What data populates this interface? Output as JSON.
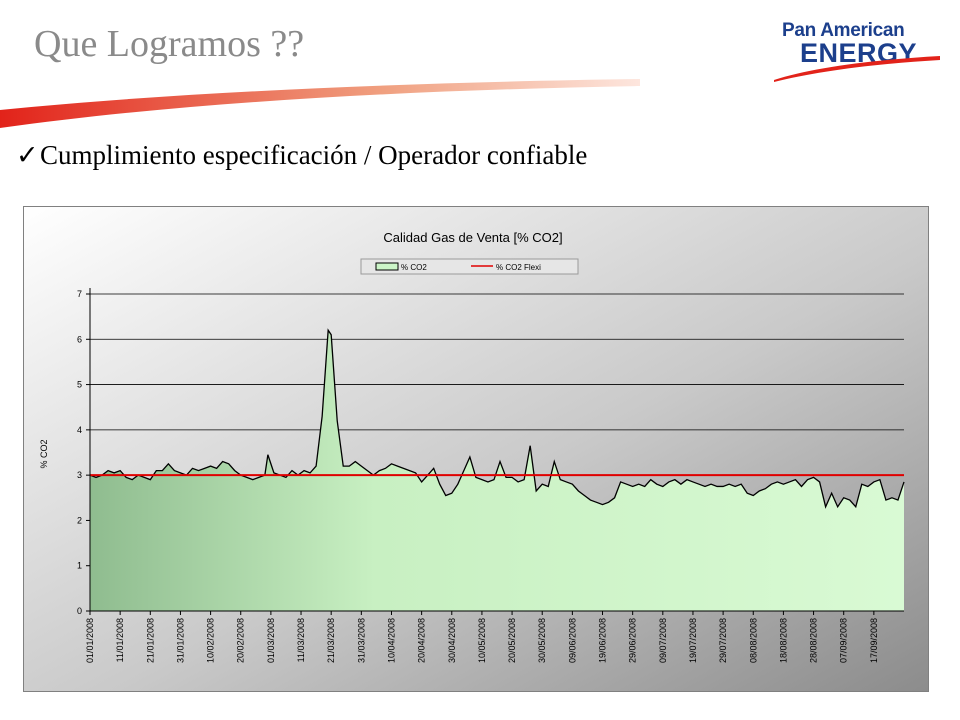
{
  "slide": {
    "title": "Que Logramos ??",
    "bullet_mark": "✓",
    "bullet_text": "Cumplimiento especificación / Operador confiable"
  },
  "logo": {
    "line1": "Pan American",
    "line2": "ENERGY",
    "color": "#1c3f8c",
    "accent_color": "#e2231a"
  },
  "chart_data": {
    "type": "area",
    "title": "Calidad Gas de Venta [%  CO2]",
    "xlabel": "",
    "ylabel": "% CO2",
    "ylim": [
      0,
      7
    ],
    "yticks": [
      0,
      1,
      2,
      3,
      4,
      5,
      6,
      7
    ],
    "grid": true,
    "legend": "top-center",
    "x_tick_labels": [
      "01/01/2008",
      "11/01/2008",
      "21/01/2008",
      "31/01/2008",
      "10/02/2008",
      "20/02/2008",
      "01/03/2008",
      "11/03/2008",
      "21/03/2008",
      "31/03/2008",
      "10/04/2008",
      "20/04/2008",
      "30/04/2008",
      "10/05/2008",
      "20/05/2008",
      "30/05/2008",
      "09/06/2008",
      "19/06/2008",
      "29/06/2008",
      "09/07/2008",
      "19/07/2008",
      "29/07/2008",
      "08/08/2008",
      "18/08/2008",
      "28/08/2008",
      "07/09/2008",
      "17/09/2008"
    ],
    "x_start": "2008-01-01",
    "x_end": "2008-09-27",
    "series": [
      {
        "name": "% CO2",
        "kind": "area",
        "fill": "#ccf5c8",
        "line_color": "#000000",
        "points": [
          [
            "2008-01-01",
            3.0
          ],
          [
            "2008-01-03",
            2.95
          ],
          [
            "2008-01-05",
            3.0
          ],
          [
            "2008-01-07",
            3.1
          ],
          [
            "2008-01-09",
            3.05
          ],
          [
            "2008-01-11",
            3.1
          ],
          [
            "2008-01-13",
            2.95
          ],
          [
            "2008-01-15",
            2.9
          ],
          [
            "2008-01-17",
            3.0
          ],
          [
            "2008-01-19",
            2.95
          ],
          [
            "2008-01-21",
            2.9
          ],
          [
            "2008-01-23",
            3.1
          ],
          [
            "2008-01-25",
            3.1
          ],
          [
            "2008-01-27",
            3.25
          ],
          [
            "2008-01-29",
            3.1
          ],
          [
            "2008-01-31",
            3.05
          ],
          [
            "2008-02-02",
            3.0
          ],
          [
            "2008-02-04",
            3.15
          ],
          [
            "2008-02-06",
            3.1
          ],
          [
            "2008-02-08",
            3.15
          ],
          [
            "2008-02-10",
            3.2
          ],
          [
            "2008-02-12",
            3.15
          ],
          [
            "2008-02-14",
            3.3
          ],
          [
            "2008-02-16",
            3.25
          ],
          [
            "2008-02-18",
            3.1
          ],
          [
            "2008-02-20",
            3.0
          ],
          [
            "2008-02-22",
            2.95
          ],
          [
            "2008-02-24",
            2.9
          ],
          [
            "2008-02-26",
            2.95
          ],
          [
            "2008-02-28",
            3.0
          ],
          [
            "2008-02-29",
            3.45
          ],
          [
            "2008-03-02",
            3.05
          ],
          [
            "2008-03-04",
            3.0
          ],
          [
            "2008-03-06",
            2.95
          ],
          [
            "2008-03-08",
            3.1
          ],
          [
            "2008-03-10",
            3.0
          ],
          [
            "2008-03-12",
            3.1
          ],
          [
            "2008-03-14",
            3.05
          ],
          [
            "2008-03-16",
            3.2
          ],
          [
            "2008-03-18",
            4.3
          ],
          [
            "2008-03-20",
            6.2
          ],
          [
            "2008-03-21",
            6.1
          ],
          [
            "2008-03-23",
            4.2
          ],
          [
            "2008-03-25",
            3.2
          ],
          [
            "2008-03-27",
            3.2
          ],
          [
            "2008-03-29",
            3.3
          ],
          [
            "2008-03-31",
            3.2
          ],
          [
            "2008-04-02",
            3.1
          ],
          [
            "2008-04-04",
            3.0
          ],
          [
            "2008-04-06",
            3.1
          ],
          [
            "2008-04-08",
            3.15
          ],
          [
            "2008-04-10",
            3.25
          ],
          [
            "2008-04-12",
            3.2
          ],
          [
            "2008-04-14",
            3.15
          ],
          [
            "2008-04-16",
            3.1
          ],
          [
            "2008-04-18",
            3.05
          ],
          [
            "2008-04-20",
            2.85
          ],
          [
            "2008-04-22",
            3.0
          ],
          [
            "2008-04-24",
            3.15
          ],
          [
            "2008-04-26",
            2.8
          ],
          [
            "2008-04-28",
            2.55
          ],
          [
            "2008-04-30",
            2.6
          ],
          [
            "2008-05-02",
            2.8
          ],
          [
            "2008-05-04",
            3.1
          ],
          [
            "2008-05-06",
            3.4
          ],
          [
            "2008-05-08",
            2.95
          ],
          [
            "2008-05-10",
            2.9
          ],
          [
            "2008-05-12",
            2.85
          ],
          [
            "2008-05-14",
            2.9
          ],
          [
            "2008-05-16",
            3.3
          ],
          [
            "2008-05-18",
            2.95
          ],
          [
            "2008-05-20",
            2.95
          ],
          [
            "2008-05-22",
            2.85
          ],
          [
            "2008-05-24",
            2.9
          ],
          [
            "2008-05-26",
            3.65
          ],
          [
            "2008-05-28",
            2.65
          ],
          [
            "2008-05-30",
            2.8
          ],
          [
            "2008-06-01",
            2.75
          ],
          [
            "2008-06-03",
            3.3
          ],
          [
            "2008-06-05",
            2.9
          ],
          [
            "2008-06-07",
            2.85
          ],
          [
            "2008-06-09",
            2.8
          ],
          [
            "2008-06-11",
            2.65
          ],
          [
            "2008-06-13",
            2.55
          ],
          [
            "2008-06-15",
            2.45
          ],
          [
            "2008-06-17",
            2.4
          ],
          [
            "2008-06-19",
            2.35
          ],
          [
            "2008-06-21",
            2.4
          ],
          [
            "2008-06-23",
            2.5
          ],
          [
            "2008-06-25",
            2.85
          ],
          [
            "2008-06-27",
            2.8
          ],
          [
            "2008-06-29",
            2.75
          ],
          [
            "2008-07-01",
            2.8
          ],
          [
            "2008-07-03",
            2.75
          ],
          [
            "2008-07-05",
            2.9
          ],
          [
            "2008-07-07",
            2.8
          ],
          [
            "2008-07-09",
            2.75
          ],
          [
            "2008-07-11",
            2.85
          ],
          [
            "2008-07-13",
            2.9
          ],
          [
            "2008-07-15",
            2.8
          ],
          [
            "2008-07-17",
            2.9
          ],
          [
            "2008-07-19",
            2.85
          ],
          [
            "2008-07-21",
            2.8
          ],
          [
            "2008-07-23",
            2.75
          ],
          [
            "2008-07-25",
            2.8
          ],
          [
            "2008-07-27",
            2.75
          ],
          [
            "2008-07-29",
            2.75
          ],
          [
            "2008-07-31",
            2.8
          ],
          [
            "2008-08-02",
            2.75
          ],
          [
            "2008-08-04",
            2.8
          ],
          [
            "2008-08-06",
            2.6
          ],
          [
            "2008-08-08",
            2.55
          ],
          [
            "2008-08-10",
            2.65
          ],
          [
            "2008-08-12",
            2.7
          ],
          [
            "2008-08-14",
            2.8
          ],
          [
            "2008-08-16",
            2.85
          ],
          [
            "2008-08-18",
            2.8
          ],
          [
            "2008-08-20",
            2.85
          ],
          [
            "2008-08-22",
            2.9
          ],
          [
            "2008-08-24",
            2.75
          ],
          [
            "2008-08-26",
            2.9
          ],
          [
            "2008-08-28",
            2.95
          ],
          [
            "2008-08-30",
            2.85
          ],
          [
            "2008-09-01",
            2.3
          ],
          [
            "2008-09-03",
            2.6
          ],
          [
            "2008-09-05",
            2.3
          ],
          [
            "2008-09-07",
            2.5
          ],
          [
            "2008-09-09",
            2.45
          ],
          [
            "2008-09-11",
            2.3
          ],
          [
            "2008-09-13",
            2.8
          ],
          [
            "2008-09-15",
            2.75
          ],
          [
            "2008-09-17",
            2.85
          ],
          [
            "2008-09-19",
            2.9
          ],
          [
            "2008-09-21",
            2.45
          ],
          [
            "2008-09-23",
            2.5
          ],
          [
            "2008-09-25",
            2.45
          ],
          [
            "2008-09-27",
            2.85
          ]
        ]
      },
      {
        "name": "% CO2 Flexi",
        "kind": "line",
        "line_color": "#e00000",
        "constant": 3.0
      }
    ]
  }
}
